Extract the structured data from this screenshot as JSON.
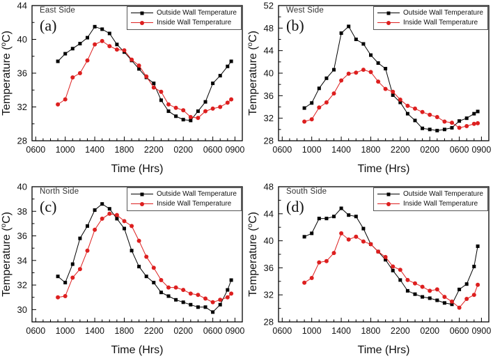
{
  "figure": {
    "background": "#ffffff",
    "legend": {
      "outside": "Outside Wall Temperature",
      "inside": "Inside Wall Temperature"
    },
    "colors": {
      "outside_series": "#000000",
      "inside_series": "#dd1f1f",
      "frame": "#000000",
      "legend_border": "#555555",
      "text": "#111111"
    }
  },
  "chart_data": [
    {
      "type": "line",
      "panel_label": "(a)",
      "title": "East Side",
      "xlabel": "Time (Hrs)",
      "ylabel": "Temperature (°C)",
      "xlim": [
        5.5,
        34
      ],
      "ylim": [
        28,
        44
      ],
      "x_tick_pos": [
        6,
        10,
        14,
        18,
        22,
        26,
        30,
        33
      ],
      "x_tick_labels": [
        "0600",
        "1000",
        "1400",
        "1800",
        "2200",
        "0200",
        "0600",
        "0900"
      ],
      "x_minor_step": 1,
      "y_ticks": [
        28,
        32,
        36,
        40,
        44
      ],
      "y_minor": [
        30,
        34,
        38,
        42
      ],
      "x_hours": [
        9,
        10,
        11,
        12,
        13,
        14,
        15,
        16,
        17,
        18,
        19,
        20,
        21,
        22,
        23,
        24,
        25,
        26,
        27,
        28,
        29,
        30,
        31,
        32,
        32.5
      ],
      "series": [
        {
          "name": "Outside Wall Temperature",
          "color": "#000000",
          "marker": "square",
          "values": [
            37.4,
            38.3,
            38.9,
            39.5,
            40.2,
            41.5,
            41.2,
            40.7,
            39.4,
            38.5,
            37.5,
            36.5,
            35.5,
            34.8,
            32.8,
            31.5,
            30.9,
            30.5,
            30.4,
            31.5,
            32.6,
            34.8,
            35.7,
            36.8,
            37.4
          ]
        },
        {
          "name": "Inside Wall Temperature",
          "color": "#dd1f1f",
          "marker": "circle",
          "values": [
            32.3,
            32.9,
            35.5,
            36.0,
            37.5,
            39.4,
            39.8,
            39.2,
            38.8,
            38.7,
            37.6,
            36.9,
            35.6,
            34.3,
            33.8,
            32.3,
            31.9,
            31.6,
            30.8,
            30.7,
            31.5,
            31.8,
            32.0,
            32.5,
            32.9
          ]
        }
      ]
    },
    {
      "type": "line",
      "panel_label": "(b)",
      "title": "West Side",
      "xlabel": "Time (Hrs)",
      "ylabel": "Temperature (°C)",
      "xlim": [
        5.5,
        34
      ],
      "ylim": [
        28,
        52
      ],
      "x_tick_pos": [
        6,
        10,
        14,
        18,
        22,
        26,
        30,
        33
      ],
      "x_tick_labels": [
        "0600",
        "1000",
        "1400",
        "1800",
        "2200",
        "0200",
        "0600",
        "0900"
      ],
      "x_minor_step": 1,
      "y_ticks": [
        28,
        32,
        36,
        40,
        44,
        48,
        52
      ],
      "y_minor": [
        30,
        34,
        38,
        42,
        46,
        50
      ],
      "x_hours": [
        9,
        10,
        11,
        12,
        13,
        14,
        15,
        16,
        17,
        18,
        19,
        20,
        21,
        22,
        23,
        24,
        25,
        26,
        27,
        28,
        29,
        30,
        31,
        32,
        32.5
      ],
      "series": [
        {
          "name": "Outside Wall Temperature",
          "color": "#000000",
          "marker": "square",
          "values": [
            33.8,
            34.7,
            37.3,
            39.1,
            40.6,
            47.1,
            48.3,
            46.0,
            45.2,
            43.2,
            41.8,
            40.8,
            36.1,
            34.8,
            32.8,
            31.6,
            30.2,
            30.0,
            29.8,
            30.0,
            30.3,
            31.5,
            32.0,
            32.8,
            33.2
          ]
        },
        {
          "name": "Inside Wall Temperature",
          "color": "#dd1f1f",
          "marker": "circle",
          "values": [
            31.4,
            31.8,
            33.9,
            34.8,
            36.4,
            38.7,
            39.9,
            40.1,
            40.6,
            40.2,
            38.5,
            37.2,
            36.7,
            35.3,
            34.2,
            33.7,
            33.1,
            32.6,
            32.2,
            31.4,
            31.2,
            30.3,
            30.6,
            31.0,
            31.1
          ]
        }
      ]
    },
    {
      "type": "line",
      "panel_label": "(c)",
      "title": "North Side",
      "xlabel": "Time (Hrs)",
      "ylabel": "Temperature (°C)",
      "xlim": [
        5.5,
        34
      ],
      "ylim": [
        29,
        40
      ],
      "x_tick_pos": [
        6,
        10,
        14,
        18,
        22,
        26,
        30,
        33
      ],
      "x_tick_labels": [
        "0600",
        "1000",
        "1400",
        "1800",
        "2200",
        "0200",
        "0600",
        "0900"
      ],
      "x_minor_step": 1,
      "y_ticks": [
        30,
        32,
        34,
        36,
        38,
        40
      ],
      "y_minor": [
        29,
        31,
        33,
        35,
        37,
        39
      ],
      "x_hours": [
        9,
        10,
        11,
        12,
        13,
        14,
        15,
        16,
        17,
        18,
        19,
        20,
        21,
        22,
        23,
        24,
        25,
        26,
        27,
        28,
        29,
        30,
        31,
        32,
        32.5
      ],
      "series": [
        {
          "name": "Outside Wall Temperature",
          "color": "#000000",
          "marker": "square",
          "values": [
            32.7,
            32.2,
            33.7,
            35.8,
            36.8,
            38.1,
            38.6,
            38.2,
            37.4,
            36.6,
            34.8,
            33.5,
            32.7,
            32.2,
            31.4,
            31.1,
            30.8,
            30.6,
            30.4,
            30.2,
            30.2,
            29.8,
            30.4,
            31.6,
            32.4
          ]
        },
        {
          "name": "Inside Wall Temperature",
          "color": "#dd1f1f",
          "marker": "circle",
          "values": [
            31.0,
            31.1,
            32.6,
            33.3,
            34.8,
            36.5,
            37.4,
            37.8,
            37.7,
            37.2,
            36.8,
            35.6,
            34.3,
            33.4,
            32.4,
            31.8,
            31.8,
            31.6,
            31.3,
            31.2,
            30.9,
            30.6,
            30.8,
            31.0,
            31.3
          ]
        }
      ]
    },
    {
      "type": "line",
      "panel_label": "(d)",
      "title": "South Side",
      "xlabel": "Time (Hrs)",
      "ylabel": "Temperature (°C)",
      "xlim": [
        5.5,
        34
      ],
      "ylim": [
        28,
        48
      ],
      "x_tick_pos": [
        6,
        10,
        14,
        18,
        22,
        26,
        30,
        33
      ],
      "x_tick_labels": [
        "0600",
        "1000",
        "1400",
        "1800",
        "2200",
        "0200",
        "0600",
        "0900"
      ],
      "x_minor_step": 1,
      "y_ticks": [
        28,
        32,
        36,
        40,
        44,
        48
      ],
      "y_minor": [
        30,
        34,
        38,
        42,
        46
      ],
      "x_hours": [
        9,
        10,
        11,
        12,
        13,
        14,
        15,
        16,
        17,
        18,
        19,
        20,
        21,
        22,
        23,
        24,
        25,
        26,
        27,
        28,
        29,
        30,
        31,
        32,
        32.5
      ],
      "series": [
        {
          "name": "Outside Wall Temperature",
          "color": "#000000",
          "marker": "square",
          "values": [
            40.6,
            41.1,
            43.3,
            43.3,
            43.6,
            44.8,
            43.8,
            43.6,
            41.8,
            39.5,
            38.4,
            37.2,
            35.6,
            34.2,
            32.6,
            32.1,
            31.7,
            31.5,
            31.2,
            30.8,
            30.6,
            32.8,
            33.6,
            36.2,
            39.2
          ]
        },
        {
          "name": "Inside Wall Temperature",
          "color": "#dd1f1f",
          "marker": "circle",
          "values": [
            33.8,
            34.5,
            36.8,
            37.0,
            38.2,
            41.1,
            40.2,
            40.6,
            39.9,
            39.5,
            38.4,
            37.6,
            36.2,
            35.7,
            34.2,
            33.7,
            33.2,
            32.6,
            32.8,
            31.7,
            31.0,
            30.1,
            31.4,
            32.0,
            33.5
          ]
        }
      ]
    }
  ]
}
